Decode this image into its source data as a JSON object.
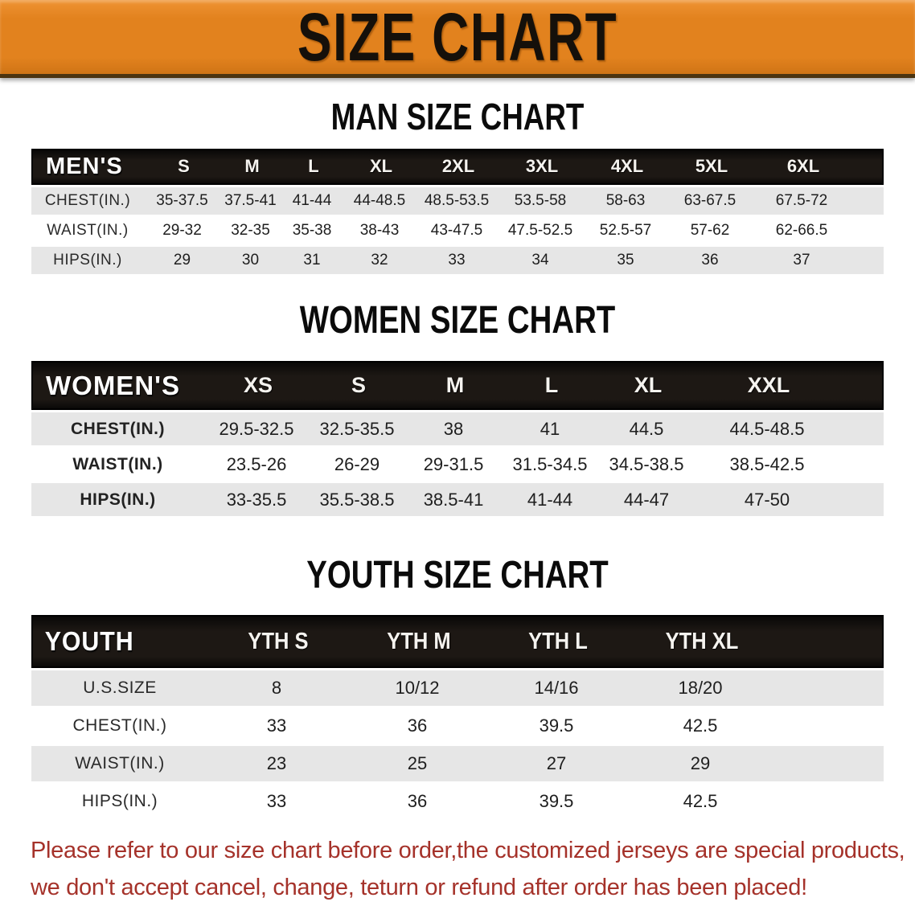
{
  "banner": {
    "title": "SIZE CHART"
  },
  "colors": {
    "banner_orange": "#e2821e",
    "header_bar_black": "#1d1814",
    "row_gray": "#e6e6e6",
    "footer_red": "#a5322a"
  },
  "tables": [
    {
      "name": "mens",
      "heading": "MAN SIZE CHART",
      "header_label": "MEN'S",
      "columns": [
        "S",
        "M",
        "L",
        "XL",
        "2XL",
        "3XL",
        "4XL",
        "5XL",
        "6XL"
      ],
      "rows": [
        {
          "label": "CHEST(IN.)",
          "values": [
            "35-37.5",
            "37.5-41",
            "41-44",
            "44-48.5",
            "48.5-53.5",
            "53.5-58",
            "58-63",
            "63-67.5",
            "67.5-72"
          ]
        },
        {
          "label": "WAIST(IN.)",
          "values": [
            "29-32",
            "32-35",
            "35-38",
            "38-43",
            "43-47.5",
            "47.5-52.5",
            "52.5-57",
            "57-62",
            "62-66.5"
          ]
        },
        {
          "label": "HIPS(IN.)",
          "values": [
            "29",
            "30",
            "31",
            "32",
            "33",
            "34",
            "35",
            "36",
            "37"
          ]
        }
      ]
    },
    {
      "name": "womens",
      "heading": "WOMEN SIZE CHART",
      "header_label": "WOMEN'S",
      "columns": [
        "XS",
        "S",
        "M",
        "L",
        "XL",
        "XXL"
      ],
      "rows": [
        {
          "label": "CHEST(IN.)",
          "values": [
            "29.5-32.5",
            "32.5-35.5",
            "38",
            "41",
            "44.5",
            "44.5-48.5"
          ]
        },
        {
          "label": "WAIST(IN.)",
          "values": [
            "23.5-26",
            "26-29",
            "29-31.5",
            "31.5-34.5",
            "34.5-38.5",
            "38.5-42.5"
          ]
        },
        {
          "label": "HIPS(IN.)",
          "values": [
            "33-35.5",
            "35.5-38.5",
            "38.5-41",
            "41-44",
            "44-47",
            "47-50"
          ]
        }
      ]
    },
    {
      "name": "youth",
      "heading": "YOUTH SIZE CHART",
      "header_label": "YOUTH",
      "columns": [
        "YTH S",
        "YTH M",
        "YTH L",
        "YTH XL"
      ],
      "rows": [
        {
          "label": "U.S.SIZE",
          "values": [
            "8",
            "10/12",
            "14/16",
            "18/20"
          ]
        },
        {
          "label": "CHEST(IN.)",
          "values": [
            "33",
            "36",
            "39.5",
            "42.5"
          ]
        },
        {
          "label": "WAIST(IN.)",
          "values": [
            "23",
            "25",
            "27",
            "29"
          ]
        },
        {
          "label": "HIPS(IN.)",
          "values": [
            "33",
            "36",
            "39.5",
            "42.5"
          ]
        }
      ]
    }
  ],
  "footer": {
    "line1": "Please refer to our size chart before order,the customized jerseys are special products,",
    "line2": "we don't accept cancel, change, teturn or refund after order has been placed!"
  }
}
